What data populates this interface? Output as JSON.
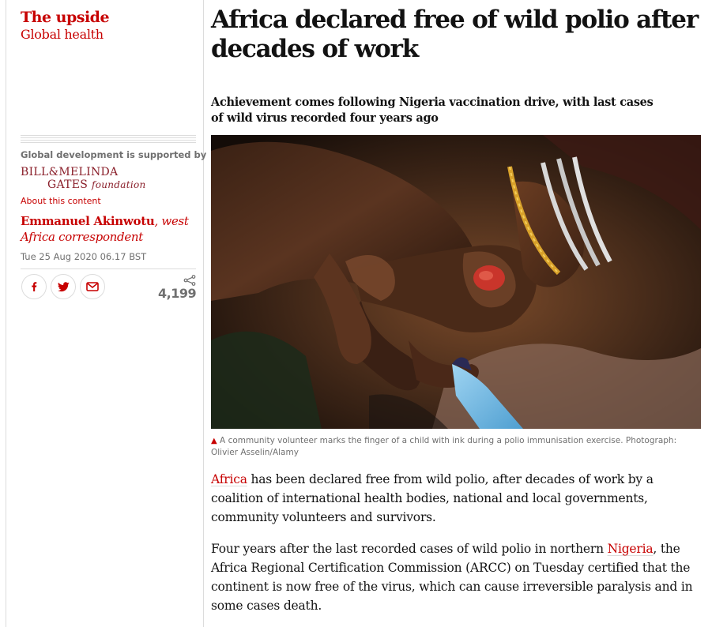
{
  "series": {
    "title": "The upside",
    "section": "Global health"
  },
  "sponsor": {
    "supported_by": "Global development is supported by",
    "logo_line1": "BILL&MELINDA",
    "logo_line2": "GATES",
    "logo_line2_suffix": "foundation",
    "about_link": "About this content"
  },
  "byline": {
    "name": "Emmanuel Akinwotu",
    "role": ", west Africa correspondent",
    "date": "Tue 25 Aug 2020 06.17 BST"
  },
  "share": {
    "count": "4,199",
    "buttons": [
      {
        "icon": "facebook-icon"
      },
      {
        "icon": "twitter-icon"
      },
      {
        "icon": "email-icon"
      }
    ]
  },
  "article": {
    "headline": "Africa declared free of wild polio after decades of work",
    "standfirst": "Achievement comes following Nigeria vaccination drive, with last cases of wild virus recorded four years ago",
    "caption": "A community volunteer marks the finger of a child with ink during a polio immunisation exercise. Photograph: Olivier Asselin/Alamy",
    "caption_icon": "triangle-icon",
    "p1_link": "Africa",
    "p1_text": " has been declared free from wild polio, after decades of work by a coalition of international health bodies, national and local governments, community volunteers and survivors.",
    "p2_text_a": "Four years after the last recorded cases of wild polio in northern ",
    "p2_link": "Nigeria",
    "p2_text_b": ", the Africa Regional Certification Commission (ARCC) on Tuesday certified that the continent is now free of the virus, which can cause irreversible paralysis and in some cases death."
  },
  "colors": {
    "accent": "#c70000",
    "text": "#121212",
    "muted": "#707070",
    "rule": "#dcdcdc",
    "logo": "#8a1f2a"
  }
}
